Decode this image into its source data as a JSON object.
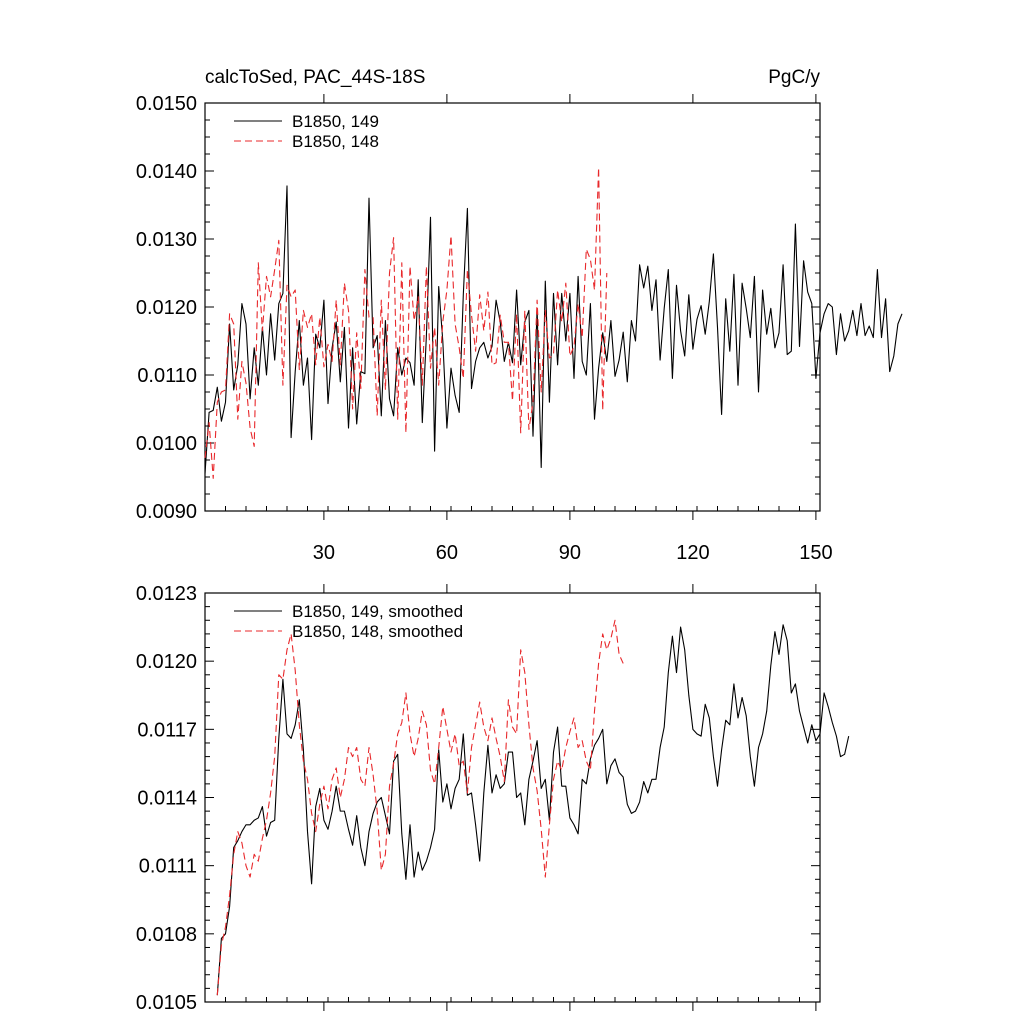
{
  "chart_data": [
    {
      "type": "line",
      "title": "calcToSed, PAC_44S-18S",
      "units": "PgC/y",
      "xlabel": "",
      "ylabel": "",
      "xlim": [
        1,
        151
      ],
      "ylim": [
        0.009,
        0.015
      ],
      "xticks": [
        30,
        60,
        90,
        120,
        150
      ],
      "xtick_labels": [
        "30",
        "60",
        "90",
        "120",
        "150"
      ],
      "yticks": [
        0.009,
        0.01,
        0.011,
        0.012,
        0.013,
        0.014,
        0.015
      ],
      "ytick_labels": [
        "0.0090",
        "0.0100",
        "0.0110",
        "0.0120",
        "0.0130",
        "0.0140",
        "0.0150"
      ],
      "legend_position": "top-left",
      "series": [
        {
          "name": "B1850, 149",
          "color": "#000000",
          "dash": "solid",
          "x_start": 1,
          "values": [
            0.00955,
            0.01045,
            0.01048,
            0.01082,
            0.01032,
            0.0106,
            0.01175,
            0.01078,
            0.01115,
            0.01205,
            0.01175,
            0.01065,
            0.0114,
            0.01085,
            0.0117,
            0.011,
            0.0119,
            0.01122,
            0.01205,
            0.0122,
            0.01378,
            0.01008,
            0.01105,
            0.0118,
            0.01085,
            0.01125,
            0.01005,
            0.0116,
            0.0114,
            0.0121,
            0.01058,
            0.0114,
            0.01178,
            0.0109,
            0.0117,
            0.01022,
            0.0114,
            0.01028,
            0.01105,
            0.01102,
            0.0136,
            0.0114,
            0.01158,
            0.0104,
            0.0118,
            0.01065,
            0.0104,
            0.0114,
            0.011,
            0.01125,
            0.01118,
            0.01085,
            0.0124,
            0.0103,
            0.01158,
            0.01332,
            0.00988,
            0.0123,
            0.0115,
            0.01022,
            0.0111,
            0.0107,
            0.01045,
            0.01218,
            0.01345,
            0.0108,
            0.0112,
            0.0114,
            0.01148,
            0.01125,
            0.01142,
            0.0121,
            0.01178,
            0.0112,
            0.01148,
            0.01118,
            0.01225,
            0.01115,
            0.01178,
            0.01195,
            0.0101,
            0.01198,
            0.00964,
            0.01238,
            0.0106,
            0.0122,
            0.01115,
            0.0122,
            0.0115,
            0.0122,
            0.01095,
            0.01245,
            0.0112,
            0.011,
            0.01205,
            0.01035,
            0.0111,
            0.01162,
            0.0112,
            0.0118,
            0.01098,
            0.01122,
            0.01163,
            0.0109,
            0.0118,
            0.0115,
            0.01262,
            0.01228,
            0.0126,
            0.01195,
            0.0124,
            0.01122,
            0.01198,
            0.01255,
            0.01095,
            0.01232,
            0.01165,
            0.01128,
            0.01218,
            0.01138,
            0.01182,
            0.01202,
            0.0116,
            0.01208,
            0.01278,
            0.0117,
            0.01042,
            0.01212,
            0.01135,
            0.01248,
            0.01085,
            0.01235,
            0.01198,
            0.01155,
            0.01245,
            0.01075,
            0.01225,
            0.0116,
            0.01198,
            0.0114,
            0.01162,
            0.01262,
            0.0113,
            0.01135,
            0.01322,
            0.01142,
            0.01268,
            0.01222,
            0.01205,
            0.01095,
            0.01162,
            0.0119,
            0.01205,
            0.012,
            0.0113,
            0.0119,
            0.0115,
            0.01165,
            0.01195,
            0.01158,
            0.01205,
            0.01158,
            0.01172,
            0.01155,
            0.01255,
            0.01155,
            0.01212,
            0.01105,
            0.01128,
            0.01175,
            0.0119
          ]
        },
        {
          "name": "B1850, 148",
          "color": "#e8282b",
          "dash": "dashed",
          "x_start": 1,
          "values": [
            0.00978,
            0.0103,
            0.00948,
            0.0106,
            0.01075,
            0.01078,
            0.0119,
            0.01175,
            0.01035,
            0.0112,
            0.01088,
            0.01022,
            0.00995,
            0.01265,
            0.01165,
            0.01245,
            0.01215,
            0.01255,
            0.01298,
            0.01085,
            0.01232,
            0.01215,
            0.01225,
            0.01108,
            0.01195,
            0.0117,
            0.0119,
            0.01115,
            0.01185,
            0.01112,
            0.01145,
            0.0112,
            0.0121,
            0.01115,
            0.01235,
            0.01195,
            0.0105,
            0.01162,
            0.0108,
            0.01255,
            0.01185,
            0.01185,
            0.0104,
            0.0121,
            0.01078,
            0.0125,
            0.01302,
            0.01035,
            0.01265,
            0.01015,
            0.0126,
            0.0118,
            0.01215,
            0.01085,
            0.0126,
            0.0111,
            0.0117,
            0.01085,
            0.01178,
            0.01225,
            0.01305,
            0.01175,
            0.0114,
            0.01095,
            0.01255,
            0.01188,
            0.01135,
            0.01218,
            0.01165,
            0.01222,
            0.01115,
            0.01118,
            0.01188,
            0.01148,
            0.01148,
            0.01062,
            0.0119,
            0.01015,
            0.01195,
            0.0102,
            0.0106,
            0.0121,
            0.01075,
            0.01195,
            0.01125,
            0.0113,
            0.01225,
            0.01178,
            0.01235,
            0.01128,
            0.01142,
            0.01205,
            0.01155,
            0.01285,
            0.0127,
            0.01225,
            0.01405,
            0.01048,
            0.0125
          ]
        }
      ]
    },
    {
      "type": "line",
      "title": "",
      "xlabel": "",
      "ylabel": "",
      "xlim": [
        1,
        151
      ],
      "ylim": [
        0.0105,
        0.0123
      ],
      "yticks": [
        0.0105,
        0.0108,
        0.0111,
        0.0114,
        0.0117,
        0.012,
        0.0123
      ],
      "ytick_labels": [
        "0.0105",
        "0.0108",
        "0.0111",
        "0.0114",
        "0.0117",
        "0.0120",
        "0.0123"
      ],
      "legend_position": "top-left",
      "series": [
        {
          "name": "B1850, 149, smoothed",
          "color": "#000000",
          "dash": "solid",
          "x_start": 4,
          "values": [
            0.01053,
            0.01078,
            0.0108,
            0.01092,
            0.01118,
            0.01121,
            0.01125,
            0.01128,
            0.01128,
            0.0113,
            0.01131,
            0.01136,
            0.01123,
            0.01129,
            0.0113,
            0.01166,
            0.01192,
            0.01168,
            0.01166,
            0.01172,
            0.01183,
            0.01161,
            0.01125,
            0.01102,
            0.01136,
            0.01144,
            0.0113,
            0.01126,
            0.01134,
            0.01145,
            0.01134,
            0.01134,
            0.01126,
            0.01119,
            0.01132,
            0.01118,
            0.0111,
            0.01125,
            0.01133,
            0.01138,
            0.0114,
            0.01132,
            0.01124,
            0.01156,
            0.01159,
            0.01124,
            0.01104,
            0.01128,
            0.01105,
            0.01116,
            0.01108,
            0.01112,
            0.01118,
            0.01126,
            0.01161,
            0.01138,
            0.01146,
            0.01135,
            0.01144,
            0.01148,
            0.01168,
            0.01141,
            0.01142,
            0.01128,
            0.01112,
            0.01142,
            0.01163,
            0.01142,
            0.0115,
            0.01144,
            0.01146,
            0.0116,
            0.0116,
            0.0114,
            0.01142,
            0.01128,
            0.01148,
            0.01156,
            0.01165,
            0.01144,
            0.01148,
            0.0113,
            0.0116,
            0.01171,
            0.01145,
            0.01145,
            0.01131,
            0.01128,
            0.01124,
            0.01148,
            0.01146,
            0.01157,
            0.01163,
            0.01166,
            0.0117,
            0.01146,
            0.01154,
            0.01157,
            0.01151,
            0.01149,
            0.01137,
            0.01133,
            0.01134,
            0.01138,
            0.01147,
            0.01142,
            0.01148,
            0.01148,
            0.01162,
            0.01171,
            0.01195,
            0.01211,
            0.01195,
            0.01215,
            0.01205,
            0.01185,
            0.0117,
            0.01168,
            0.01167,
            0.01181,
            0.01175,
            0.01158,
            0.01145,
            0.01161,
            0.01174,
            0.01172,
            0.0119,
            0.01175,
            0.01184,
            0.01176,
            0.01158,
            0.01145,
            0.01162,
            0.01168,
            0.01178,
            0.01198,
            0.01213,
            0.01203,
            0.01216,
            0.01209,
            0.01186,
            0.0119,
            0.01178,
            0.01171,
            0.01164,
            0.01172,
            0.01165,
            0.01168,
            0.01186,
            0.0118,
            0.01173,
            0.01167,
            0.01158,
            0.01159,
            0.01167
          ]
        },
        {
          "name": "B1850, 148, smoothed",
          "color": "#e8282b",
          "dash": "dashed",
          "x_start": 4,
          "values": [
            0.01053,
            0.01075,
            0.01083,
            0.01097,
            0.01115,
            0.01125,
            0.0112,
            0.0111,
            0.01105,
            0.01115,
            0.01112,
            0.01122,
            0.0113,
            0.01142,
            0.01158,
            0.01194,
            0.01192,
            0.01205,
            0.01212,
            0.01196,
            0.01172,
            0.01156,
            0.01148,
            0.01133,
            0.01125,
            0.01137,
            0.01145,
            0.01135,
            0.01148,
            0.01153,
            0.0114,
            0.01148,
            0.01162,
            0.01158,
            0.01162,
            0.01148,
            0.01145,
            0.01162,
            0.0115,
            0.01134,
            0.01108,
            0.01115,
            0.01145,
            0.01155,
            0.01168,
            0.01173,
            0.01186,
            0.01168,
            0.01158,
            0.01166,
            0.01178,
            0.01172,
            0.01152,
            0.01146,
            0.01162,
            0.0118,
            0.0117,
            0.0116,
            0.01168,
            0.01154,
            0.01156,
            0.01142,
            0.01162,
            0.01172,
            0.01182,
            0.01171,
            0.01165,
            0.01175,
            0.01166,
            0.01158,
            0.01147,
            0.01183,
            0.01171,
            0.01168,
            0.01205,
            0.01195,
            0.01172,
            0.01153,
            0.01143,
            0.01126,
            0.01105,
            0.01128,
            0.01148,
            0.01156,
            0.01152,
            0.01162,
            0.01169,
            0.01175,
            0.01162,
            0.01165,
            0.01156,
            0.01152,
            0.01178,
            0.01199,
            0.01212,
            0.01205,
            0.0121,
            0.01218,
            0.01203,
            0.01199
          ]
        }
      ]
    }
  ]
}
